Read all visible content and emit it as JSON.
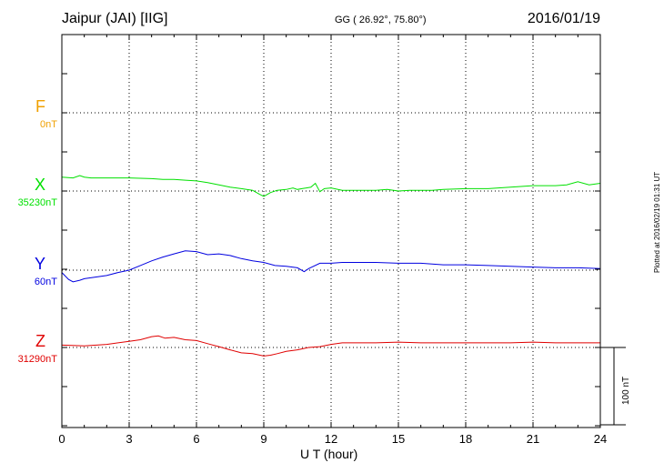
{
  "header": {
    "station": "Jaipur (JAI)  [IIG]",
    "coords": "GG ( 26.92°,  75.80°)",
    "date": "2016/01/19"
  },
  "side_note": "Plotted at 2016/02/19 01:31  UT",
  "scale_label": "100 nT",
  "chart_data": {
    "type": "line",
    "xlabel": "U T (hour)",
    "xlim": [
      0,
      24
    ],
    "xticks": [
      0,
      3,
      6,
      9,
      12,
      15,
      18,
      21,
      24
    ],
    "grid": true,
    "scale_bar_nT": 100,
    "series": [
      {
        "name": "F",
        "baseline": "0nT",
        "color": "#f0a000",
        "x": [],
        "y": []
      },
      {
        "name": "X",
        "baseline": "35230nT",
        "color": "#00e000",
        "x": [
          0,
          0.5,
          0.8,
          1.0,
          1.3,
          2.0,
          3.0,
          4.0,
          4.5,
          5.0,
          5.5,
          6.0,
          6.5,
          7.0,
          7.5,
          8.0,
          8.5,
          8.8,
          9.0,
          9.3,
          9.6,
          10.0,
          10.3,
          10.5,
          10.7,
          10.9,
          11.1,
          11.3,
          11.5,
          11.7,
          12.0,
          12.5,
          13.0,
          14.0,
          14.5,
          15.0,
          15.5,
          16.0,
          16.5,
          17.0,
          18.0,
          19.0,
          20.0,
          21.0,
          22.0,
          22.5,
          23.0,
          23.5,
          24.0
        ],
        "y": [
          18,
          17,
          20,
          18,
          17,
          17,
          17,
          16,
          15,
          15,
          14,
          13,
          11,
          8,
          5,
          3,
          1,
          -4,
          -7,
          -2,
          1,
          2,
          4,
          2,
          3,
          4,
          5,
          10,
          -1,
          3,
          4,
          1,
          1,
          1,
          2,
          0,
          1,
          1,
          1,
          2,
          3,
          3,
          5,
          7,
          7,
          8,
          12,
          8,
          10
        ]
      },
      {
        "name": "Y",
        "baseline": "60nT",
        "color": "#0000e0",
        "x": [
          0,
          0.3,
          0.5,
          0.8,
          1.0,
          1.5,
          2.0,
          2.5,
          3.0,
          3.5,
          4.0,
          4.5,
          5.0,
          5.5,
          6.0,
          6.5,
          7.0,
          7.5,
          8.0,
          8.5,
          9.0,
          9.5,
          10.0,
          10.5,
          10.8,
          11.0,
          11.5,
          12.0,
          12.5,
          13.0,
          14.0,
          15.0,
          16.0,
          17.0,
          18.0,
          19.0,
          20.0,
          21.0,
          22.0,
          23.0,
          24.0
        ],
        "y": [
          -3,
          -12,
          -15,
          -13,
          -11,
          -9,
          -7,
          -3,
          0,
          6,
          12,
          17,
          21,
          25,
          24,
          20,
          21,
          19,
          15,
          12,
          10,
          6,
          5,
          3,
          -2,
          2,
          9,
          9,
          10,
          10,
          10,
          9,
          9,
          7,
          7,
          6,
          5,
          4,
          3,
          3,
          2
        ]
      },
      {
        "name": "Z",
        "baseline": "31290nT",
        "color": "#e00000",
        "x": [
          0,
          1.0,
          2.0,
          3.0,
          3.5,
          4.0,
          4.3,
          4.6,
          5.0,
          5.5,
          6.0,
          6.5,
          7.0,
          7.5,
          8.0,
          8.5,
          9.0,
          9.3,
          9.6,
          10.0,
          10.5,
          11.0,
          11.5,
          12.0,
          12.5,
          13.0,
          14.0,
          15.0,
          16.0,
          18.0,
          20.0,
          21.0,
          22.0,
          23.0,
          24.0
        ],
        "y": [
          3,
          2,
          4,
          8,
          10,
          14,
          15,
          12,
          13,
          10,
          9,
          5,
          1,
          -3,
          -7,
          -8,
          -11,
          -10,
          -8,
          -5,
          -3,
          0,
          1,
          4,
          6,
          6,
          6,
          7,
          6,
          6,
          6,
          7,
          6,
          6,
          6
        ]
      }
    ]
  }
}
